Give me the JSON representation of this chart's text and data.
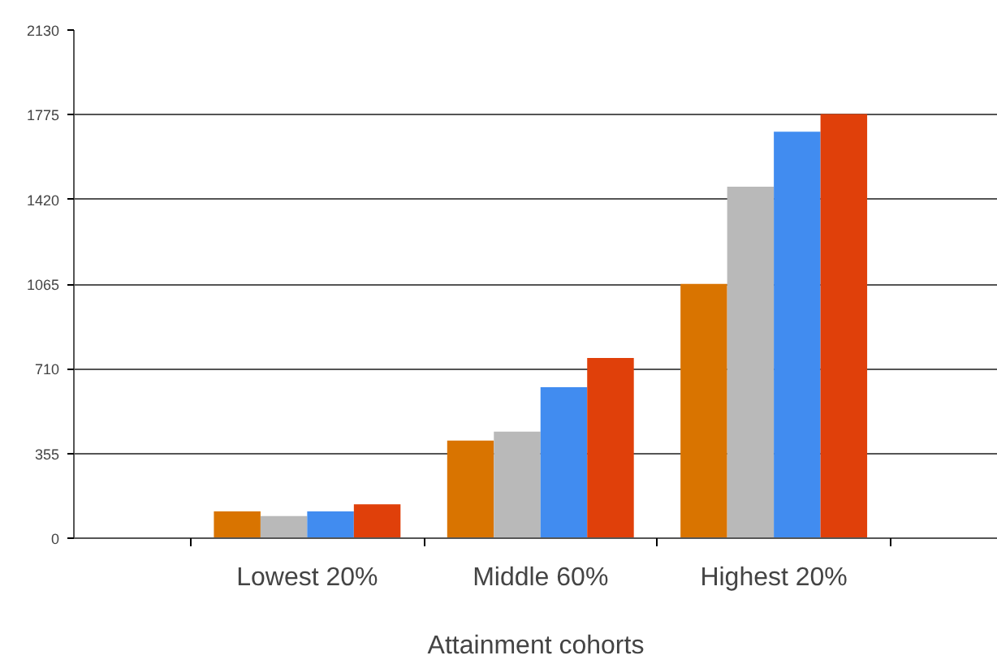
{
  "chart_data": {
    "type": "bar",
    "xlabel": "Attainment cohorts",
    "categories": [
      "Lowest 20%",
      "Middle 60%",
      "Highest 20%"
    ],
    "series": [
      {
        "color": "#d97400",
        "values": [
          112,
          409,
          1066
        ]
      },
      {
        "color": "#b9b9b9",
        "values": [
          93,
          447,
          1473
        ]
      },
      {
        "color": "#418cf0",
        "values": [
          112,
          633,
          1704
        ]
      },
      {
        "color": "#e0400a",
        "values": [
          142,
          755,
          1778
        ]
      }
    ],
    "ylim": [
      0,
      2130
    ],
    "yticks": [
      0,
      355,
      710,
      1065,
      1420,
      1775,
      2130
    ],
    "grid": "y"
  }
}
